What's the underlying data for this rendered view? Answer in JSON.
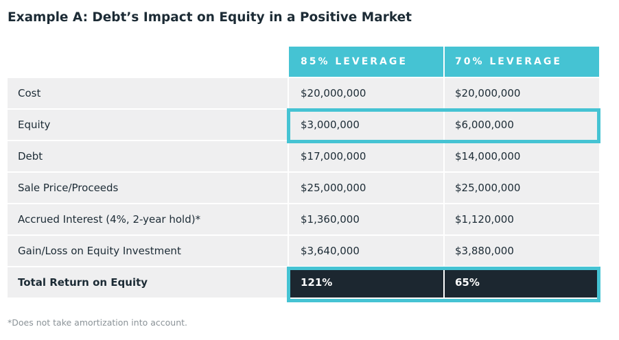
{
  "title": "Example A: Debt’s Impact on Equity in a Positive Market",
  "table": {
    "columns": [
      "85% LEVERAGE",
      "70% LEVERAGE"
    ],
    "rows": [
      {
        "label": "Cost",
        "a": "$20,000,000",
        "b": "$20,000,000"
      },
      {
        "label": "Equity",
        "a": "$3,000,000",
        "b": "$6,000,000"
      },
      {
        "label": "Debt",
        "a": "$17,000,000",
        "b": "$14,000,000"
      },
      {
        "label": "Sale Price/Proceeds",
        "a": "$25,000,000",
        "b": "$25,000,000"
      },
      {
        "label": "Accrued Interest (4%, 2-year hold)*",
        "a": "$1,360,000",
        "b": "$1,120,000"
      },
      {
        "label": "Gain/Loss on Equity Investment",
        "a": "$3,640,000",
        "b": "$3,880,000"
      },
      {
        "label": "Total Return on Equity",
        "a": "121%",
        "b": "65%"
      }
    ]
  },
  "footnote": "*Does not take amortization into account.",
  "colors": {
    "accent": "#45c3d3",
    "dark": "#1c2730",
    "row_bg": "#efeff0",
    "text": "#1c2b35"
  }
}
